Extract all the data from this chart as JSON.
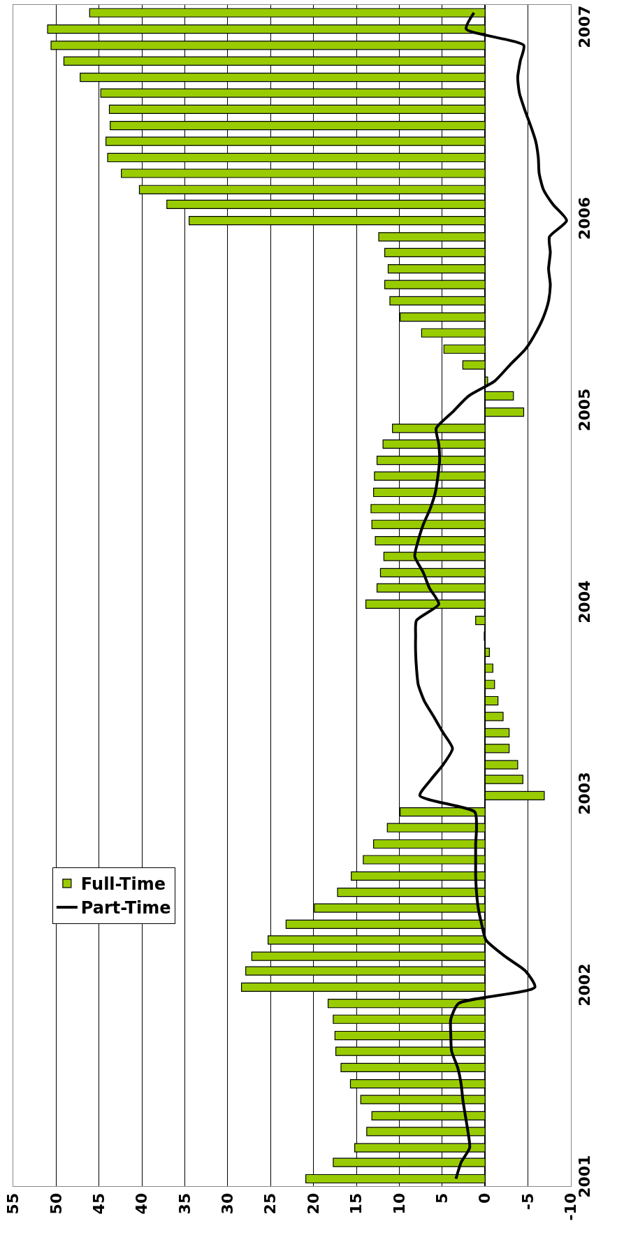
{
  "chart_data": {
    "type": "bar",
    "orientation": "horizontal",
    "x": [
      "2001-01",
      "2001-02",
      "2001-03",
      "2001-04",
      "2001-05",
      "2001-06",
      "2001-07",
      "2001-08",
      "2001-09",
      "2001-10",
      "2001-11",
      "2001-12",
      "2002-01",
      "2002-02",
      "2002-03",
      "2002-04",
      "2002-05",
      "2002-06",
      "2002-07",
      "2002-08",
      "2002-09",
      "2002-10",
      "2002-11",
      "2002-12",
      "2003-01",
      "2003-02",
      "2003-03",
      "2003-04",
      "2003-05",
      "2003-06",
      "2003-07",
      "2003-08",
      "2003-09",
      "2003-10",
      "2003-11",
      "2003-12",
      "2004-01",
      "2004-02",
      "2004-03",
      "2004-04",
      "2004-05",
      "2004-06",
      "2004-07",
      "2004-08",
      "2004-09",
      "2004-10",
      "2004-11",
      "2004-12",
      "2005-01",
      "2005-02",
      "2005-03",
      "2005-04",
      "2005-05",
      "2005-06",
      "2005-07",
      "2005-08",
      "2005-09",
      "2005-10",
      "2005-11",
      "2005-12",
      "2006-01",
      "2006-02",
      "2006-03",
      "2006-04",
      "2006-05",
      "2006-06",
      "2006-07",
      "2006-08",
      "2006-09",
      "2006-10",
      "2006-11",
      "2006-12",
      "2007-01",
      "2007-02"
    ],
    "series": [
      {
        "name": "Full-Time",
        "color": "#99cc00",
        "values": [
          20.9,
          17.7,
          15.2,
          13.8,
          13.2,
          14.5,
          15.7,
          16.8,
          17.4,
          17.5,
          17.7,
          18.3,
          28.4,
          27.9,
          27.2,
          25.3,
          23.2,
          19.9,
          17.2,
          15.6,
          14.2,
          13.0,
          11.4,
          9.9,
          -6.9,
          -4.4,
          -3.8,
          -2.8,
          -2.8,
          -2.1,
          -1.5,
          -1.1,
          -0.9,
          -0.5,
          0.1,
          1.1,
          13.9,
          12.6,
          12.2,
          11.8,
          12.8,
          13.2,
          13.3,
          13.0,
          12.9,
          12.6,
          11.9,
          10.8,
          -4.5,
          -3.3,
          -0.3,
          2.6,
          4.8,
          7.4,
          9.9,
          11.1,
          11.7,
          11.3,
          11.7,
          12.4,
          34.5,
          37.1,
          40.3,
          42.4,
          44.0,
          44.2,
          43.7,
          43.8,
          44.8,
          47.2,
          49.1,
          50.6,
          51.0,
          46.1
        ]
      },
      {
        "name": "Part-Time",
        "type": "line",
        "color": "#000000",
        "values": [
          3.4,
          2.8,
          1.8,
          2.0,
          2.3,
          2.6,
          2.8,
          3.2,
          3.9,
          4.0,
          4.0,
          3.1,
          -5.8,
          -4.7,
          -2.3,
          -0.1,
          0.4,
          0.8,
          1.0,
          1.1,
          1.1,
          1.1,
          1.0,
          1.2,
          7.6,
          6.3,
          4.9,
          3.8,
          4.9,
          6.0,
          7.1,
          7.8,
          8.0,
          8.1,
          8.1,
          8.0,
          5.4,
          6.5,
          7.2,
          8.2,
          7.8,
          7.2,
          6.4,
          5.8,
          5.5,
          5.3,
          5.4,
          5.7,
          3.8,
          1.9,
          -1.1,
          -2.9,
          -4.7,
          -5.9,
          -6.8,
          -7.4,
          -7.6,
          -7.4,
          -7.6,
          -7.5,
          -9.5,
          -7.9,
          -6.8,
          -6.3,
          -6.2,
          -5.9,
          -5.3,
          -4.6,
          -4.0,
          -3.8,
          -4.1,
          -4.5,
          2.2,
          1.3
        ]
      }
    ],
    "xlim": [
      55,
      -10
    ],
    "xticks": [
      55,
      50,
      45,
      40,
      35,
      30,
      25,
      20,
      15,
      10,
      5,
      0,
      -5,
      {
        "value": -10,
        "label": "-10"
      }
    ],
    "ylim": [
      "2000-12-18",
      "2007-02-16"
    ],
    "yticks": [
      {
        "value": "2001-01-01",
        "label": "2001"
      },
      {
        "value": "2002-01-01",
        "label": "2002"
      },
      {
        "value": "2003-01-01",
        "label": "2003"
      },
      {
        "value": "2004-01-01",
        "label": "2004"
      },
      {
        "value": "2005-01-01",
        "label": "2005"
      },
      {
        "value": "2006-01-01",
        "label": "2006"
      },
      {
        "value": "2007-01-01",
        "label": "2007"
      }
    ],
    "grid": "x",
    "legend": "bottom left"
  }
}
